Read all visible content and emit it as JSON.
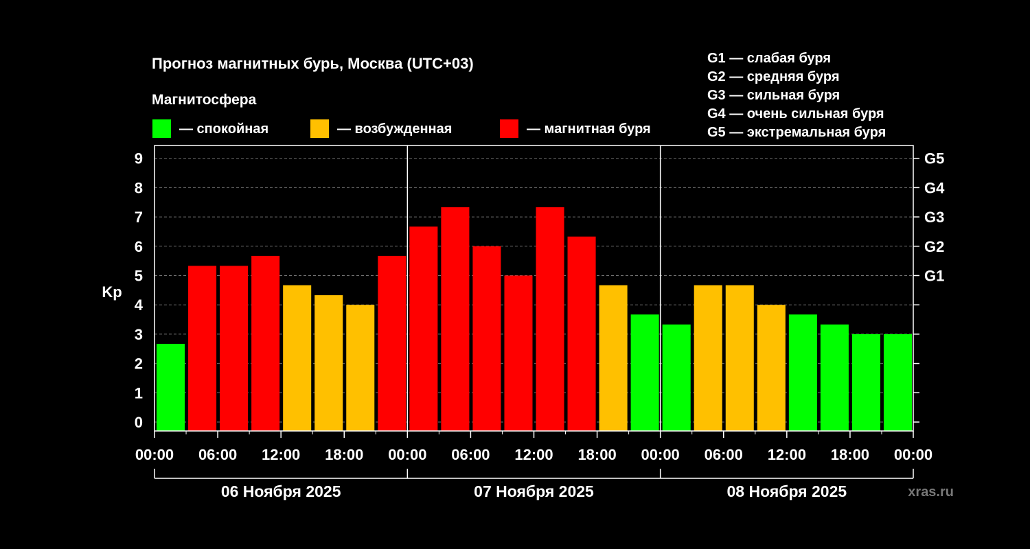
{
  "title": "Прогноз магнитных бурь, Москва (UTC+03)",
  "magnetosphere_label": "Магнитосфера",
  "legend": [
    {
      "label": "— спокойная",
      "color": "#00ff00"
    },
    {
      "label": "— возбужденная",
      "color": "#ffc000"
    },
    {
      "label": "— магнитная буря",
      "color": "#ff0000"
    }
  ],
  "g_legend": [
    "G1 — слабая буря",
    "G2 — средняя буря",
    "G3 — сильная буря",
    "G4 — очень сильная буря",
    "G5 — экстремальная буря"
  ],
  "watermark": "xras.ru",
  "chart_data": {
    "type": "bar",
    "ylabel": "Kp",
    "ylim": [
      0,
      9
    ],
    "yticks": [
      "0",
      "1",
      "2",
      "3",
      "4",
      "5",
      "6",
      "7",
      "8",
      "9"
    ],
    "g_levels": [
      {
        "label": "G1",
        "kp": 5
      },
      {
        "label": "G2",
        "kp": 6
      },
      {
        "label": "G3",
        "kp": 7
      },
      {
        "label": "G4",
        "kp": 8
      },
      {
        "label": "G5",
        "kp": 9
      }
    ],
    "x_tick_labels": [
      "00:00",
      "06:00",
      "12:00",
      "18:00",
      "00:00",
      "06:00",
      "12:00",
      "18:00",
      "00:00",
      "06:00",
      "12:00",
      "18:00",
      "00:00"
    ],
    "days": [
      "06 Ноября 2025",
      "07 Ноября 2025",
      "08 Ноября 2025"
    ],
    "grid": true,
    "colors": {
      "quiet": "#00ff00",
      "active": "#ffc000",
      "storm": "#ff0000"
    },
    "values": [
      2.67,
      5.33,
      5.33,
      5.67,
      4.67,
      4.33,
      4.0,
      5.67,
      6.67,
      7.33,
      6.0,
      5.0,
      7.33,
      6.33,
      4.67,
      3.67,
      3.33,
      4.67,
      4.67,
      4.0,
      3.67,
      3.33,
      3.0,
      3.0
    ],
    "levels": [
      "quiet",
      "storm",
      "storm",
      "storm",
      "active",
      "active",
      "active",
      "storm",
      "storm",
      "storm",
      "storm",
      "storm",
      "storm",
      "storm",
      "active",
      "quiet",
      "quiet",
      "active",
      "active",
      "active",
      "quiet",
      "quiet",
      "quiet",
      "quiet"
    ]
  }
}
